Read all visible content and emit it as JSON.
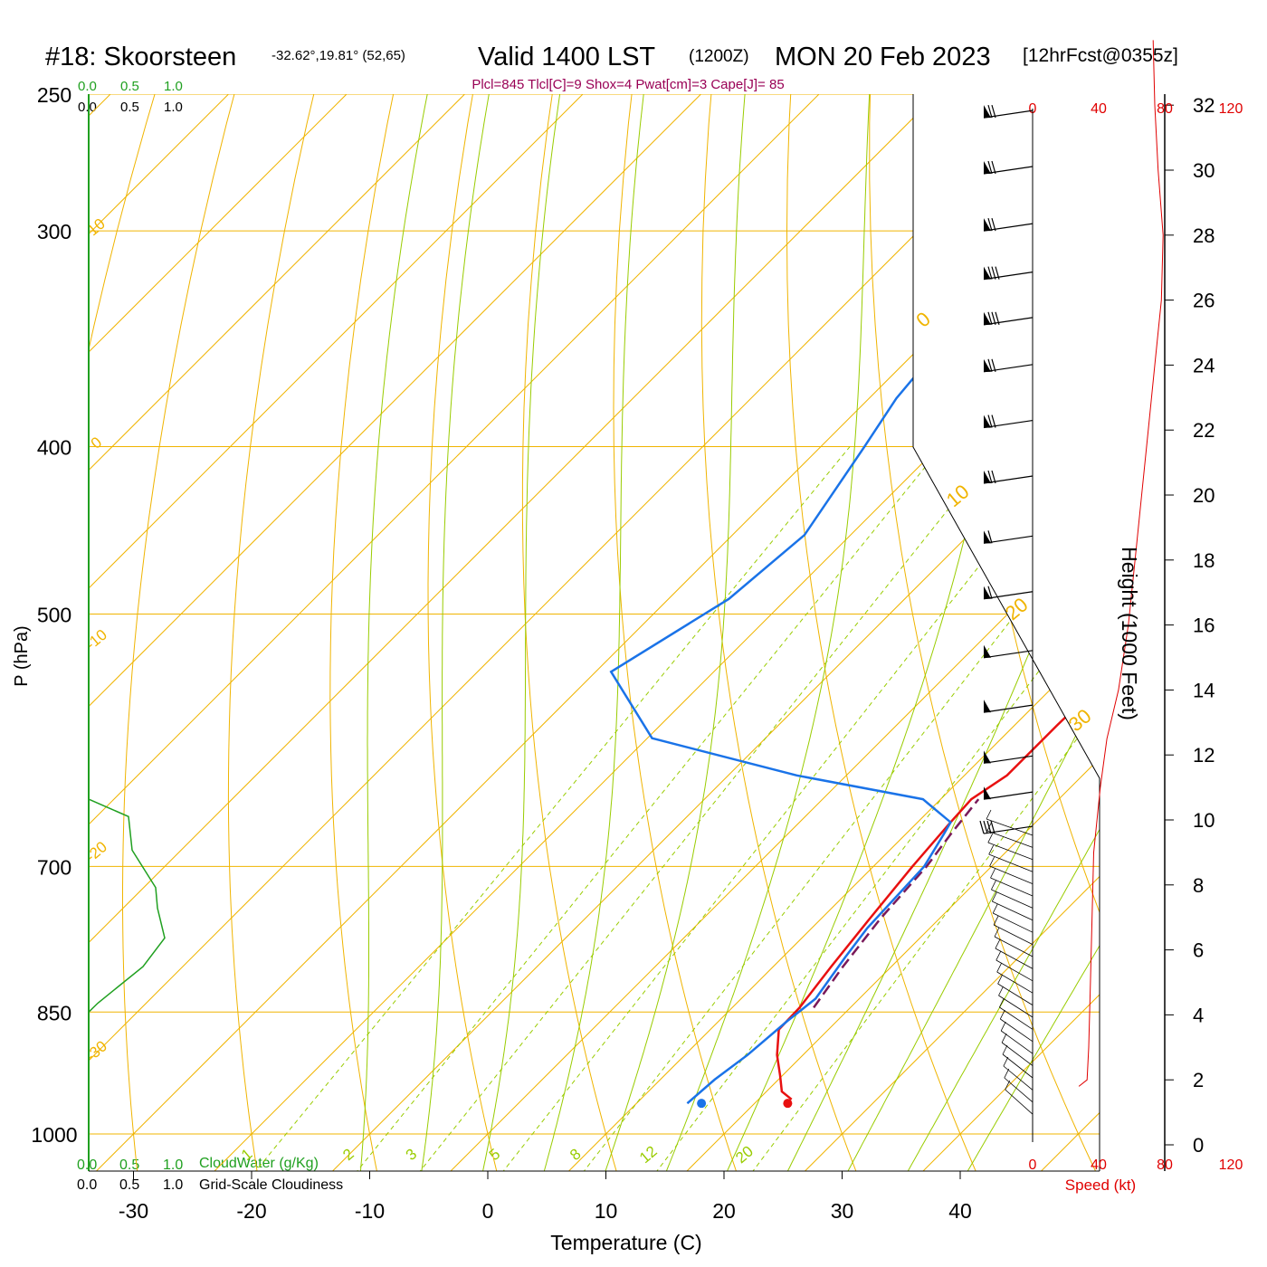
{
  "header": {
    "station": "#18: Skoorsteen",
    "coords": "-32.62°,19.81° (52,65)",
    "valid": "Valid 1400 LST",
    "utc": "(1200Z)",
    "date": "MON 20 Feb 2023",
    "forecast": "[12hrFcst@0355z]",
    "indices": "Plcl=845 Tlcl[C]=9 Shox=4 Pwat[cm]=3 Cape[J]= 85"
  },
  "scale_labels": {
    "top_green": [
      "0.0",
      "0.5",
      "1.0"
    ],
    "top_black": [
      "0.0",
      "0.5",
      "1.0"
    ],
    "bottom_green": [
      "0.0",
      "0.5",
      "1.0"
    ],
    "bottom_black": [
      "0.0",
      "0.5",
      "1.0"
    ],
    "cloud_water": "CloudWater (g/Kg)",
    "cloudiness": "Grid-Scale Cloudiness"
  },
  "colors": {
    "isobar": "#f0b400",
    "isotherm": "#f0b400",
    "dry_adiabat": "#f0b400",
    "moist_adiabat": "#99cc00",
    "mixing_ratio": "#99cc00",
    "temperature": "#e81010",
    "dewpoint": "#1a73e8",
    "parcel": "#7a1a5a",
    "cloud": "#20a020",
    "index_text": "#990055",
    "speed": "#e00000"
  },
  "chart_data": {
    "type": "skew-t",
    "title": "#18: Skoorsteen",
    "xlabel": "Temperature (C)",
    "ylabel": "P (hPa)",
    "right_axis_label": "Height (1000 Feet)",
    "speed_label": "Speed (kt)",
    "x_ticks": [
      -30,
      -20,
      -10,
      0,
      10,
      20,
      30,
      40
    ],
    "pressure_ticks": [
      250,
      300,
      400,
      500,
      700,
      850,
      1000
    ],
    "isotherm_labels": [
      {
        "label": "10",
        "p": 300
      },
      {
        "label": "0",
        "p": 400
      },
      {
        "label": "-10",
        "p": 520
      },
      {
        "label": "-20",
        "p": 690
      },
      {
        "label": "-30",
        "p": 900
      },
      {
        "label": "0",
        "p": 340,
        "right": true
      },
      {
        "label": "10",
        "p": 430,
        "right": true
      },
      {
        "label": "20",
        "p": 500,
        "right": true
      },
      {
        "label": "30",
        "p": 580,
        "right": true
      }
    ],
    "mixing_ratio_labels": [
      "1",
      "2",
      "3",
      "5",
      "8",
      "12",
      "20"
    ],
    "mixing_ratio_values": [
      1,
      2,
      3,
      5,
      8,
      12,
      20
    ],
    "height_ticks": [
      0,
      2,
      4,
      6,
      8,
      10,
      12,
      14,
      16,
      18,
      20,
      22,
      24,
      26,
      28,
      30,
      32
    ],
    "speed_ticks": [
      "0",
      "40",
      "80",
      "120"
    ],
    "temperature": [
      {
        "p": 955,
        "t": 22.8
      },
      {
        "p": 945,
        "t": 21.3
      },
      {
        "p": 925,
        "t": 19.8
      },
      {
        "p": 900,
        "t": 17.8
      },
      {
        "p": 870,
        "t": 15.8
      },
      {
        "p": 845,
        "t": 15.7
      },
      {
        "p": 800,
        "t": 14.9
      },
      {
        "p": 750,
        "t": 14.1
      },
      {
        "p": 700,
        "t": 13.3
      },
      {
        "p": 660,
        "t": 12.8
      },
      {
        "p": 640,
        "t": 12.6
      },
      {
        "p": 620,
        "t": 13.6
      },
      {
        "p": 580,
        "t": 13.6
      },
      {
        "p": 555,
        "t": 13.7
      },
      {
        "p": 520,
        "t": 13.0
      },
      {
        "p": 500,
        "t": 12.0
      },
      {
        "p": 470,
        "t": 10.5
      },
      {
        "p": 440,
        "t": 9.3
      },
      {
        "p": 400,
        "t": 7.6
      },
      {
        "p": 360,
        "t": 4.6
      },
      {
        "p": 330,
        "t": 2.9
      },
      {
        "p": 300,
        "t": 1.6
      },
      {
        "p": 275,
        "t": 0.6
      },
      {
        "p": 260,
        "t": 0.5
      },
      {
        "p": 252,
        "t": 0.3
      }
    ],
    "dewpoint": [
      {
        "p": 960,
        "t": 14.3
      },
      {
        "p": 930,
        "t": 14.6
      },
      {
        "p": 900,
        "t": 15.3
      },
      {
        "p": 860,
        "t": 15.8
      },
      {
        "p": 835,
        "t": 16.3
      },
      {
        "p": 790,
        "t": 15.3
      },
      {
        "p": 760,
        "t": 14.7
      },
      {
        "p": 700,
        "t": 14.3
      },
      {
        "p": 670,
        "t": 13.2
      },
      {
        "p": 660,
        "t": 12.8
      },
      {
        "p": 640,
        "t": 8.5
      },
      {
        "p": 620,
        "t": -4.2
      },
      {
        "p": 590,
        "t": -19.6
      },
      {
        "p": 540,
        "t": -28.7
      },
      {
        "p": 490,
        "t": -24.9
      },
      {
        "p": 450,
        "t": -23.9
      },
      {
        "p": 400,
        "t": -26.3
      },
      {
        "p": 375,
        "t": -27.7
      },
      {
        "p": 350,
        "t": -28.4
      },
      {
        "p": 325,
        "t": -28.4
      },
      {
        "p": 300,
        "t": -26.4
      },
      {
        "p": 280,
        "t": -25.3
      },
      {
        "p": 262,
        "t": -24.6
      },
      {
        "p": 252,
        "t": -25.0
      }
    ],
    "surface": {
      "p": 960,
      "t": 22.8,
      "td": 15.5
    },
    "parcel": [
      {
        "p": 845,
        "t": 16.9
      },
      {
        "p": 800,
        "t": 15.9
      },
      {
        "p": 750,
        "t": 15.0
      },
      {
        "p": 700,
        "t": 14.5
      },
      {
        "p": 670,
        "t": 13.8
      },
      {
        "p": 640,
        "t": 13.2
      }
    ],
    "cloud_water": [
      {
        "p": 640,
        "f": 0.0
      },
      {
        "p": 655,
        "f": 0.22
      },
      {
        "p": 685,
        "f": 0.24
      },
      {
        "p": 720,
        "f": 0.37
      },
      {
        "p": 740,
        "f": 0.38
      },
      {
        "p": 770,
        "f": 0.42
      },
      {
        "p": 800,
        "f": 0.3
      },
      {
        "p": 840,
        "f": 0.05
      },
      {
        "p": 850,
        "f": 0.0
      }
    ],
    "wind_speed_kt": [
      {
        "h": 1.8,
        "s": 28
      },
      {
        "h": 2.0,
        "s": 33
      },
      {
        "h": 3.0,
        "s": 34
      },
      {
        "h": 5.0,
        "s": 35
      },
      {
        "h": 7.0,
        "s": 36
      },
      {
        "h": 9.0,
        "s": 37
      },
      {
        "h": 11.0,
        "s": 41
      },
      {
        "h": 12.5,
        "s": 45
      },
      {
        "h": 14.0,
        "s": 52
      },
      {
        "h": 16.0,
        "s": 58
      },
      {
        "h": 18.0,
        "s": 62
      },
      {
        "h": 20.0,
        "s": 66
      },
      {
        "h": 22.0,
        "s": 70
      },
      {
        "h": 24.0,
        "s": 74
      },
      {
        "h": 26.0,
        "s": 78
      },
      {
        "h": 28.0,
        "s": 79
      },
      {
        "h": 30.0,
        "s": 76
      },
      {
        "h": 32.0,
        "s": 74
      },
      {
        "h": 34.0,
        "s": 73
      }
    ],
    "wind_barbs": [
      {
        "p": 258,
        "dir": 270,
        "spd": 70
      },
      {
        "p": 278,
        "dir": 280,
        "spd": 75
      },
      {
        "p": 300,
        "dir": 282,
        "spd": 78
      },
      {
        "p": 320,
        "dir": 285,
        "spd": 80
      },
      {
        "p": 340,
        "dir": 285,
        "spd": 80
      },
      {
        "p": 362,
        "dir": 282,
        "spd": 78
      },
      {
        "p": 390,
        "dir": 280,
        "spd": 75
      },
      {
        "p": 420,
        "dir": 278,
        "spd": 70
      },
      {
        "p": 455,
        "dir": 275,
        "spd": 65
      },
      {
        "p": 490,
        "dir": 275,
        "spd": 60
      },
      {
        "p": 530,
        "dir": 272,
        "spd": 55
      },
      {
        "p": 570,
        "dir": 270,
        "spd": 50
      },
      {
        "p": 610,
        "dir": 272,
        "spd": 50
      },
      {
        "p": 640,
        "dir": 275,
        "spd": 50
      },
      {
        "p": 670,
        "dir": 280,
        "spd": 45
      }
    ]
  }
}
